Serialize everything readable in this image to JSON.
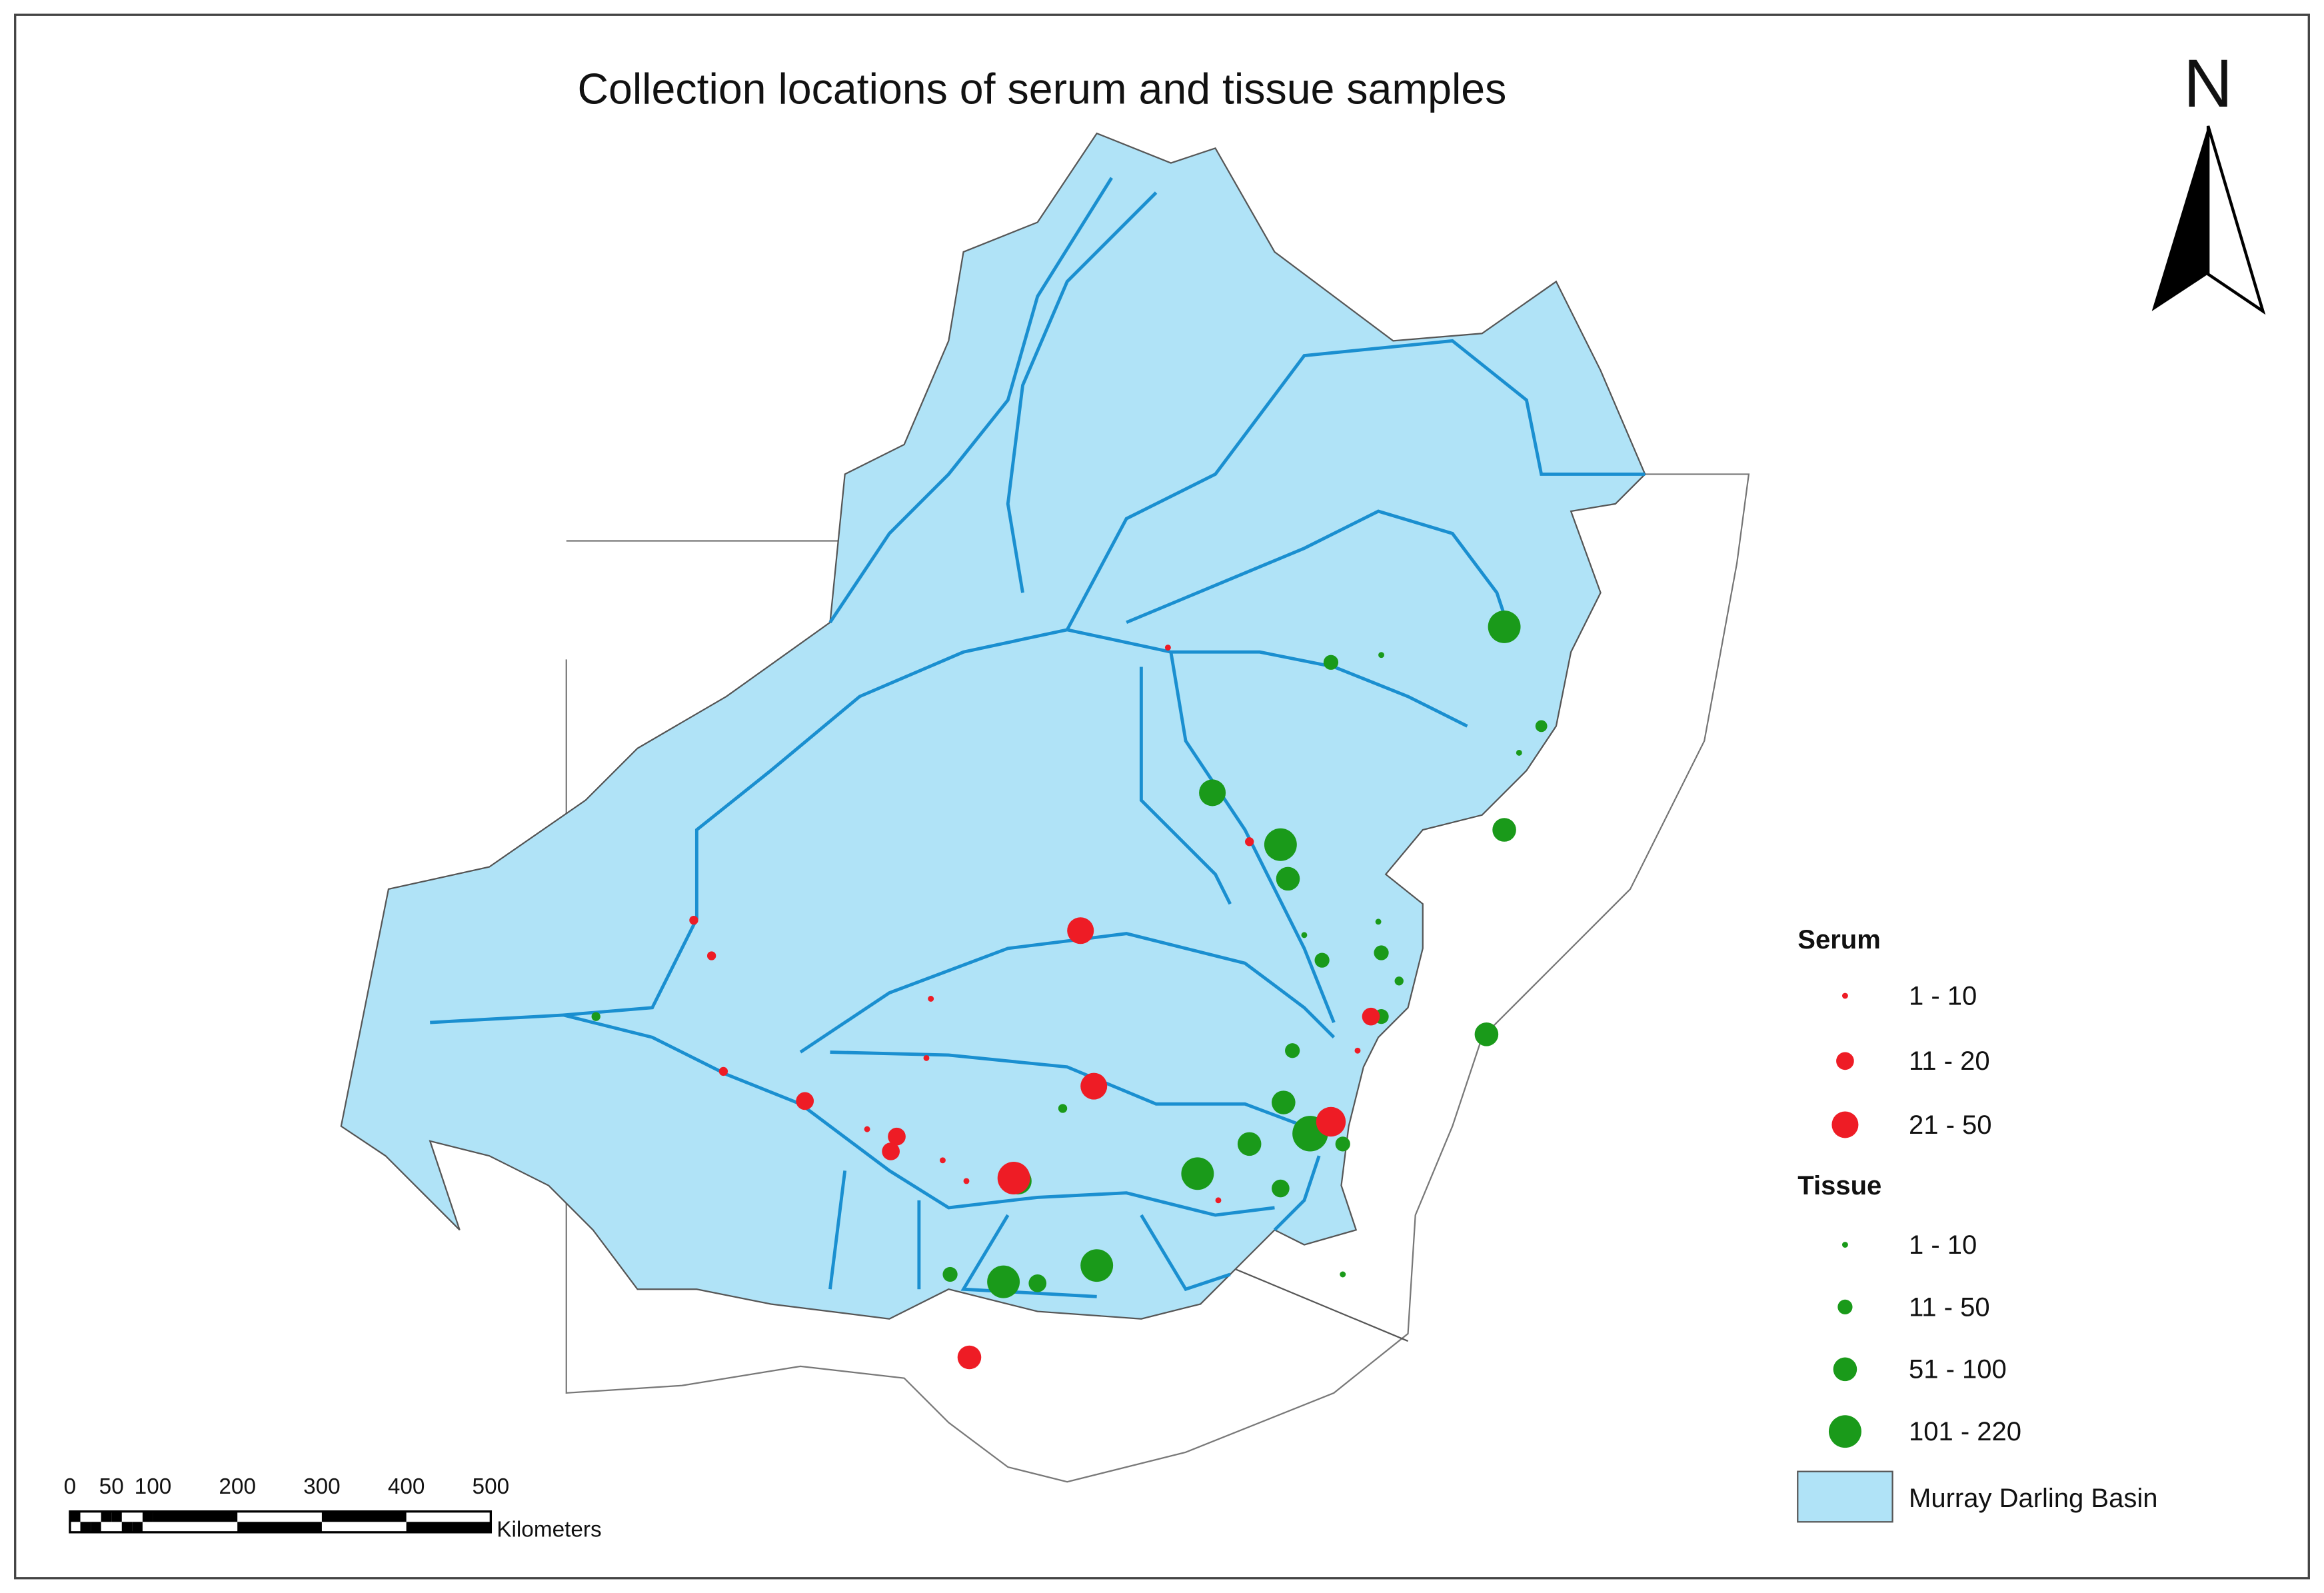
{
  "title": "Collection locations of serum and tissue samples",
  "north": "N",
  "legend": {
    "serum": {
      "title": "Serum",
      "items": [
        "1 - 10",
        "11 - 20",
        "21 - 50"
      ]
    },
    "tissue": {
      "title": "Tissue",
      "items": [
        "1 - 10",
        "11 - 50",
        "51 - 100",
        "101 - 220"
      ]
    },
    "basin": "Murray Darling Basin"
  },
  "scale_bar": {
    "labels": [
      "0",
      "50",
      "100",
      "200",
      "300",
      "400",
      "500"
    ],
    "unit": "Kilometers"
  }
}
